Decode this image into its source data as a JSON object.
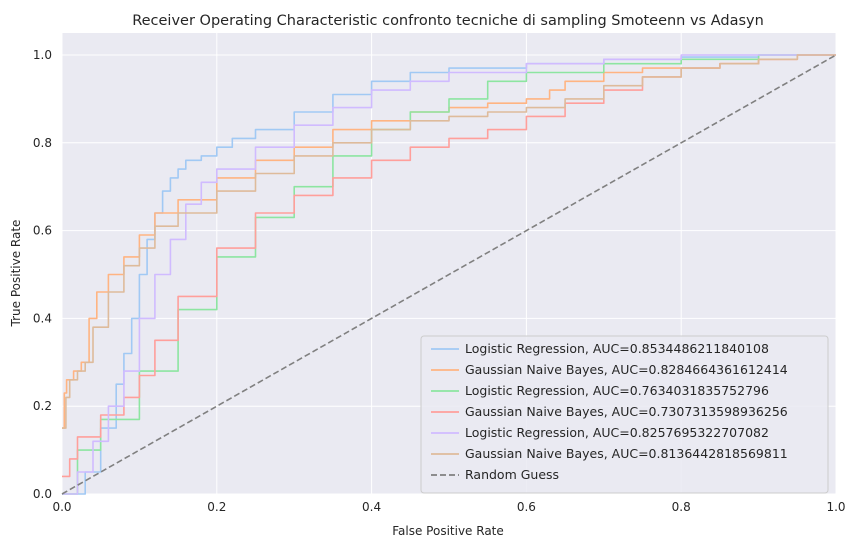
{
  "chart_data": {
    "type": "line",
    "title": "Receiver Operating Characteristic confronto tecniche di sampling Smoteenn vs Adasyn",
    "xlabel": "False Positive Rate",
    "ylabel": "True Positive Rate",
    "xlim": [
      0,
      1
    ],
    "ylim": [
      0,
      1.05
    ],
    "xticks": [
      "0.0",
      "0.2",
      "0.4",
      "0.6",
      "0.8",
      "1.0"
    ],
    "yticks": [
      "0.0",
      "0.2",
      "0.4",
      "0.6",
      "0.8",
      "1.0"
    ],
    "grid": true,
    "legend_position": "lower-right",
    "series": [
      {
        "name": "Logistic Regression, AUC=0.8534486211840108",
        "color": "#a1c9f4",
        "x": [
          0,
          0.03,
          0.05,
          0.07,
          0.08,
          0.09,
          0.1,
          0.11,
          0.12,
          0.13,
          0.14,
          0.15,
          0.16,
          0.18,
          0.2,
          0.22,
          0.25,
          0.3,
          0.35,
          0.4,
          0.45,
          0.5,
          0.6,
          0.7,
          0.8,
          0.9,
          1.0
        ],
        "y": [
          0,
          0.05,
          0.15,
          0.25,
          0.32,
          0.4,
          0.5,
          0.58,
          0.64,
          0.69,
          0.72,
          0.74,
          0.76,
          0.77,
          0.79,
          0.81,
          0.83,
          0.87,
          0.91,
          0.94,
          0.96,
          0.97,
          0.98,
          0.99,
          0.995,
          1.0,
          1.0
        ]
      },
      {
        "name": "Gaussian Naive Bayes, AUC=0.8284664361612414",
        "color": "#ffb482",
        "x": [
          0,
          0.003,
          0.006,
          0.015,
          0.025,
          0.035,
          0.045,
          0.06,
          0.08,
          0.1,
          0.12,
          0.15,
          0.2,
          0.25,
          0.3,
          0.35,
          0.4,
          0.45,
          0.5,
          0.55,
          0.6,
          0.63,
          0.65,
          0.7,
          0.75,
          0.8,
          0.85,
          0.9,
          0.95,
          1.0
        ],
        "y": [
          0.15,
          0.23,
          0.26,
          0.28,
          0.3,
          0.4,
          0.46,
          0.5,
          0.54,
          0.59,
          0.64,
          0.67,
          0.72,
          0.76,
          0.79,
          0.83,
          0.85,
          0.87,
          0.88,
          0.89,
          0.9,
          0.92,
          0.94,
          0.96,
          0.97,
          0.97,
          0.98,
          0.99,
          1.0,
          1.0
        ]
      },
      {
        "name": "Logistic Regression, AUC=0.7634031835752796",
        "color": "#8de5a1",
        "x": [
          0,
          0.02,
          0.05,
          0.1,
          0.15,
          0.2,
          0.25,
          0.3,
          0.35,
          0.4,
          0.45,
          0.5,
          0.55,
          0.6,
          0.7,
          0.8,
          0.9,
          1.0
        ],
        "y": [
          0,
          0.1,
          0.17,
          0.28,
          0.42,
          0.54,
          0.63,
          0.7,
          0.77,
          0.83,
          0.87,
          0.9,
          0.94,
          0.96,
          0.98,
          0.99,
          1.0,
          1.0
        ]
      },
      {
        "name": "Gaussian Naive Bayes, AUC=0.7307313598936256",
        "color": "#ff9f9b",
        "x": [
          0,
          0.01,
          0.02,
          0.05,
          0.08,
          0.1,
          0.12,
          0.15,
          0.2,
          0.25,
          0.3,
          0.35,
          0.4,
          0.45,
          0.5,
          0.55,
          0.6,
          0.65,
          0.7,
          0.75,
          0.8,
          0.85,
          0.9,
          0.95,
          1.0
        ],
        "y": [
          0.04,
          0.08,
          0.13,
          0.18,
          0.22,
          0.27,
          0.35,
          0.45,
          0.56,
          0.64,
          0.68,
          0.72,
          0.76,
          0.79,
          0.81,
          0.83,
          0.86,
          0.89,
          0.92,
          0.95,
          0.97,
          0.98,
          0.99,
          1.0,
          1.0
        ]
      },
      {
        "name": "Logistic Regression, AUC=0.8257695322707082",
        "color": "#d0bbff",
        "x": [
          0,
          0.02,
          0.04,
          0.06,
          0.08,
          0.1,
          0.12,
          0.14,
          0.16,
          0.18,
          0.2,
          0.25,
          0.3,
          0.35,
          0.4,
          0.45,
          0.5,
          0.6,
          0.7,
          0.8,
          0.9,
          1.0
        ],
        "y": [
          0,
          0.05,
          0.12,
          0.2,
          0.28,
          0.4,
          0.5,
          0.58,
          0.66,
          0.71,
          0.74,
          0.79,
          0.84,
          0.88,
          0.92,
          0.94,
          0.96,
          0.98,
          0.99,
          1.0,
          1.0,
          1.0
        ]
      },
      {
        "name": "Gaussian Naive Bayes, AUC=0.8136442818569811",
        "color": "#debb9b",
        "x": [
          0,
          0.005,
          0.01,
          0.02,
          0.03,
          0.04,
          0.06,
          0.08,
          0.1,
          0.12,
          0.15,
          0.2,
          0.25,
          0.3,
          0.35,
          0.4,
          0.45,
          0.5,
          0.55,
          0.6,
          0.65,
          0.7,
          0.75,
          0.8,
          0.85,
          0.9,
          0.95,
          1.0
        ],
        "y": [
          0.15,
          0.22,
          0.26,
          0.28,
          0.3,
          0.38,
          0.46,
          0.52,
          0.56,
          0.61,
          0.64,
          0.69,
          0.73,
          0.77,
          0.8,
          0.83,
          0.85,
          0.86,
          0.87,
          0.88,
          0.9,
          0.93,
          0.95,
          0.97,
          0.98,
          0.99,
          1.0,
          1.0
        ]
      },
      {
        "name": "Random Guess",
        "color": "#808080",
        "dashed": true,
        "x": [
          0,
          1
        ],
        "y": [
          0,
          1
        ]
      }
    ]
  }
}
